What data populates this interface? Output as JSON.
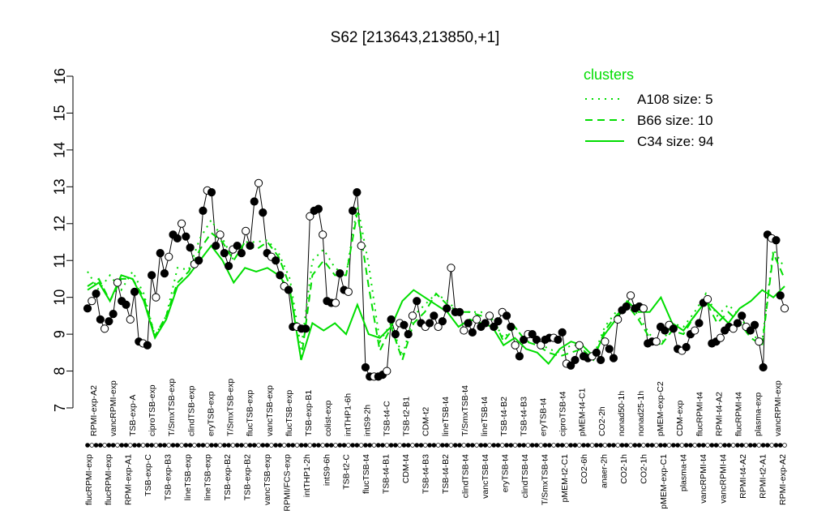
{
  "chart_data": {
    "type": "line",
    "title": "S62 [213643,213850,+1]",
    "xlabel": "",
    "ylabel": "",
    "ylim": [
      7,
      16
    ],
    "yticks": [
      7,
      8,
      9,
      10,
      11,
      12,
      13,
      14,
      15,
      16
    ],
    "grid": false,
    "legend": {
      "title": "clusters",
      "placement": "top-right",
      "entries": [
        {
          "label": "A108 size: 5",
          "style": "dotted"
        },
        {
          "label": "B66 size: 10",
          "style": "dashed"
        },
        {
          "label": "C34 size: 94",
          "style": "solid"
        }
      ]
    },
    "x_labels_top": [
      "RPMI-exp-A2",
      "vancRPMI-exp",
      "TSB-exp-A",
      "ciproTSB-exp",
      "T/SmxTSB-exp",
      "clindTSB-exp",
      "eryTSB-exp",
      "T/SmxTSB-exp",
      "flucTSB-exp",
      "vancTSB-exp",
      "flucTSB-exp",
      "TSB-exp-B1",
      "colist-exp",
      "intTHP1-6h",
      "intS9-2h",
      "TSB-t4-C",
      "TSB-t2-B1",
      "CDM-t2",
      "lineTSB-t4",
      "T/SmxTSB-t4",
      "lineTSB-t4",
      "TSB-t4-B2",
      "TSB-t4-B3",
      "eryTSB-t4",
      "ciproTSB-t4",
      "pMEM-t4-C1",
      "CO2-2h",
      "nonad50-1h",
      "nonad25-1h",
      "pMEM-exp-C2",
      "CDM-exp",
      "flucRPMI-t4",
      "RPMI-t4-A2",
      "flucRPMI-t4",
      "plasma-exp",
      "vancRPMI-exp"
    ],
    "x_labels_bottom": [
      "flucRPMI-exp",
      "flucRPMI-exp",
      "RPMI-exp-A1",
      "TSB-exp-C",
      "TSB-exp-B3",
      "lineTSB-exp",
      "lineTSB-exp",
      "TSB-exp-B2",
      "TSB-exp-B2",
      "vancTSB-exp",
      "RPMI/FCS-exp",
      "intTHP1-2h",
      "intS9-6h",
      "TSB-t2-C",
      "flucTSB-t4",
      "TSB-t4-B1",
      "CDM-t4",
      "TSB-t4-B3",
      "TSB-t4-B2",
      "clindTSB-t4",
      "vancTSB-t4",
      "eryTSB-t4",
      "clindTSB-t4",
      "T/SmxTSB-t4",
      "pMEM-t2-C1",
      "CO2-6h",
      "anaer-2h",
      "CO2-1h",
      "CO2-1h",
      "pMEM-exp-C1",
      "plasma-t4",
      "vancRPMI-t4",
      "vancRPMI-t4",
      "RPMI-t4-A2",
      "RPMI-t2-A1",
      "RPMI-exp-A2"
    ],
    "series": [
      {
        "name": "",
        "style": "black-line-with-points",
        "values": [
          9.7,
          9.9,
          10.1,
          9.4,
          9.15,
          9.35,
          9.55,
          10.4,
          9.9,
          9.8,
          9.4,
          10.15,
          8.8,
          8.75,
          8.7,
          10.6,
          10.0,
          11.2,
          10.65,
          11.1,
          11.7,
          11.6,
          12.0,
          11.65,
          11.35,
          10.9,
          11.0,
          12.35,
          12.9,
          12.85,
          11.4,
          11.7,
          11.2,
          10.85,
          11.3,
          11.4,
          11.2,
          11.8,
          11.4,
          12.6,
          13.1,
          12.3,
          11.2,
          11.1,
          11.0,
          10.6,
          10.3,
          10.2,
          9.2,
          9.2,
          9.15,
          9.15,
          12.2,
          12.35,
          12.4,
          11.7,
          9.9,
          9.85,
          9.85,
          10.65,
          10.2,
          10.15,
          12.35,
          12.85,
          11.4,
          8.1,
          7.85,
          7.85,
          7.85,
          7.9,
          8.0,
          9.4,
          9.0,
          9.3,
          9.25,
          9.0,
          9.5,
          9.9,
          9.3,
          9.2,
          9.3,
          9.5,
          9.2,
          9.35,
          9.7,
          10.8,
          9.6,
          9.6,
          9.1,
          9.3,
          9.05,
          9.4,
          9.2,
          9.3,
          9.5,
          9.2,
          9.35,
          9.6,
          9.5,
          9.2,
          8.7,
          8.4,
          8.85,
          9.0,
          9.0,
          8.85,
          8.7,
          8.85,
          8.9,
          8.9,
          8.85,
          9.05,
          8.2,
          8.15,
          8.3,
          8.7,
          8.4,
          8.35,
          8.4,
          8.5,
          8.3,
          8.8,
          8.6,
          8.35,
          9.4,
          9.65,
          9.75,
          10.05,
          9.7,
          9.75,
          9.7,
          8.75,
          8.8,
          8.8,
          9.2,
          9.1,
          9.25,
          9.15,
          8.6,
          8.55,
          8.65,
          9.0,
          9.1,
          9.3,
          9.85,
          9.95,
          8.75,
          8.8,
          8.9,
          9.1,
          9.2,
          9.15,
          9.3,
          9.5,
          9.2,
          9.1,
          9.25,
          8.8,
          8.1,
          11.7,
          11.6,
          11.55,
          10.05,
          9.7
        ]
      },
      {
        "name": "A108 size: 5",
        "style": "dotted",
        "values": [
          10.7,
          10.2,
          10.6,
          10.2,
          10.7,
          10.1,
          8.95,
          9.5,
          10.8,
          10.75,
          11.6,
          12.1,
          11.6,
          11.0,
          11.5,
          11.5,
          11.55,
          11.2,
          10.5,
          8.6,
          11.0,
          11.3,
          10.8,
          10.6,
          12.5,
          10.9,
          8.8,
          9.3,
          8.4,
          9.5,
          9.8,
          10.1,
          9.9,
          9.6,
          9.6,
          9.6,
          9.4,
          8.9,
          9.2,
          8.8,
          8.8,
          8.6,
          8.5,
          8.7,
          8.7,
          8.4,
          9.2,
          9.6,
          9.9,
          9.5,
          9.0,
          8.7,
          9.3,
          9.2,
          9.6,
          10.1,
          9.5,
          9.8,
          9.5,
          9.0,
          8.8,
          11.3,
          10.8
        ]
      },
      {
        "name": "B66 size: 10",
        "style": "dashed",
        "values": [
          10.3,
          10.5,
          9.9,
          10.5,
          10.5,
          10.0,
          8.95,
          9.5,
          10.4,
          10.7,
          11.3,
          11.75,
          11.5,
          11.0,
          11.5,
          11.3,
          11.5,
          11.1,
          10.3,
          8.3,
          10.6,
          11.0,
          10.6,
          10.6,
          12.3,
          10.3,
          8.55,
          9.2,
          8.3,
          9.3,
          9.6,
          10.1,
          9.8,
          9.6,
          9.6,
          9.5,
          9.5,
          8.8,
          9.2,
          8.8,
          8.7,
          8.5,
          8.4,
          8.5,
          8.6,
          8.3,
          9.1,
          9.5,
          9.8,
          9.4,
          8.9,
          8.7,
          9.1,
          9.0,
          9.5,
          9.9,
          9.3,
          9.6,
          9.3,
          8.9,
          8.7,
          11.2,
          10.5
        ]
      },
      {
        "name": "C34 size: 94",
        "style": "solid",
        "values": [
          10.2,
          10.4,
          9.9,
          10.6,
          10.5,
          9.9,
          8.9,
          9.4,
          10.3,
          10.6,
          11.0,
          11.4,
          11.0,
          10.4,
          10.8,
          10.7,
          10.8,
          10.6,
          10.2,
          8.3,
          9.3,
          9.1,
          9.3,
          9.0,
          9.8,
          9.0,
          8.9,
          9.2,
          9.9,
          10.2,
          10.0,
          9.8,
          9.6,
          9.2,
          9.4,
          9.3,
          9.2,
          8.7,
          8.9,
          8.6,
          8.5,
          8.2,
          8.6,
          8.8,
          8.7,
          8.4,
          9.0,
          9.4,
          9.9,
          9.6,
          9.6,
          10.0,
          9.3,
          9.1,
          9.5,
          9.9,
          9.6,
          9.3,
          9.7,
          9.9,
          10.2,
          10.0,
          10.3
        ]
      }
    ]
  }
}
